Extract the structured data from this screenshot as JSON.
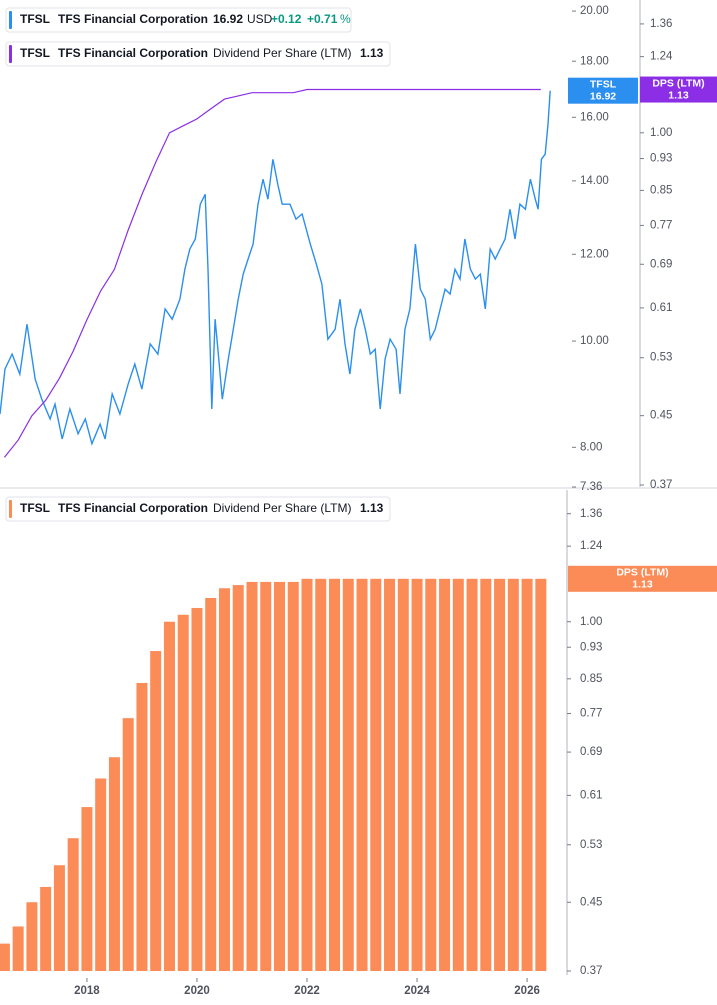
{
  "chart_data": [
    {
      "type": "line",
      "ticker": "TFSL",
      "company": "TFS Financial Corporation",
      "currency": "USD",
      "change": "+0.12",
      "change_pct": "+0.71",
      "change_pct_unit": "%",
      "xlim": [
        2016.42,
        2026.78
      ],
      "log_y": true,
      "ylim": [
        7.36,
        20.47
      ],
      "yticks": [
        {
          "value": 20,
          "label": "20.00"
        },
        {
          "value": 18,
          "label": "18.00"
        },
        {
          "value": 16,
          "label": "16.00"
        },
        {
          "value": 14,
          "label": "14.00"
        },
        {
          "value": 12,
          "label": "12.00"
        },
        {
          "value": 10,
          "label": "10.00"
        },
        {
          "value": 8,
          "label": "8.00"
        },
        7.36
      ],
      "y2lim": [
        0.37,
        1.455
      ],
      "y2ticks": [
        1.36,
        1.24,
        {
          "value": 1,
          "label": "1.00"
        },
        0.93,
        0.85,
        0.77,
        0.69,
        0.61,
        0.53,
        0.45,
        0.37
      ],
      "series": [
        {
          "name": "TFSL",
          "color": "#2b8ff0",
          "x": [
            2016.42,
            2016.51,
            2016.64,
            2016.78,
            2016.91,
            2017.06,
            2017.18,
            2017.33,
            2017.42,
            2017.55,
            2017.69,
            2017.84,
            2017.97,
            2018.09,
            2018.24,
            2018.33,
            2018.46,
            2018.6,
            2018.75,
            2018.87,
            2019.0,
            2019.15,
            2019.29,
            2019.42,
            2019.55,
            2019.69,
            2019.78,
            2019.87,
            2019.97,
            2020.06,
            2020.15,
            2020.2,
            2020.27,
            2020.33,
            2020.38,
            2020.46,
            2020.57,
            2020.66,
            2020.75,
            2020.84,
            2020.93,
            2021.02,
            2021.11,
            2021.2,
            2021.29,
            2021.38,
            2021.47,
            2021.55,
            2021.69,
            2021.8,
            2021.91,
            2022.06,
            2022.17,
            2022.27,
            2022.38,
            2022.51,
            2022.6,
            2022.69,
            2022.78,
            2022.87,
            2022.97,
            2023.06,
            2023.15,
            2023.24,
            2023.33,
            2023.42,
            2023.51,
            2023.62,
            2023.69,
            2023.78,
            2023.87,
            2023.97,
            2024.06,
            2024.15,
            2024.24,
            2024.33,
            2024.42,
            2024.51,
            2024.6,
            2024.69,
            2024.78,
            2024.87,
            2024.97,
            2025.06,
            2025.15,
            2025.24,
            2025.33,
            2025.42,
            2025.51,
            2025.6,
            2025.69,
            2025.78,
            2025.87,
            2025.97,
            2026.06,
            2026.15,
            2026.2,
            2026.26,
            2026.33,
            2026.38,
            2026.42
          ],
          "values": [
            8.58,
            9.43,
            9.73,
            9.33,
            10.36,
            9.23,
            8.85,
            8.49,
            8.76,
            8.14,
            8.67,
            8.23,
            8.49,
            8.06,
            8.4,
            8.14,
            8.95,
            8.58,
            9.14,
            9.53,
            9.04,
            9.94,
            9.73,
            10.7,
            10.47,
            10.92,
            11.63,
            12.13,
            12.39,
            13.33,
            13.61,
            11.63,
            8.67,
            10.47,
            9.83,
            8.85,
            9.63,
            10.25,
            10.92,
            11.51,
            11.88,
            12.26,
            13.33,
            14.05,
            13.47,
            14.65,
            13.9,
            13.33,
            13.33,
            12.92,
            13.06,
            12.26,
            11.75,
            11.27,
            10.04,
            10.25,
            10.92,
            9.94,
            9.33,
            10.25,
            10.7,
            10.25,
            9.73,
            9.83,
            8.67,
            9.63,
            10.04,
            9.83,
            8.95,
            10.25,
            10.7,
            12.26,
            11.15,
            10.92,
            10.04,
            10.25,
            10.7,
            11.15,
            11.04,
            11.63,
            11.39,
            12.39,
            11.63,
            11.39,
            11.51,
            10.7,
            12.13,
            11.88,
            12.13,
            12.39,
            13.19,
            12.39,
            13.33,
            13.19,
            14.05,
            13.47,
            13.19,
            14.65,
            14.81,
            15.77,
            16.92
          ]
        },
        {
          "name": "Dividend Per Share (LTM)",
          "short_name": "DPS (LTM)",
          "color": "#8b2ee6",
          "axis": "y2",
          "x": [
            2016.5,
            2016.75,
            2017,
            2017.25,
            2017.5,
            2017.75,
            2018,
            2018.25,
            2018.5,
            2018.75,
            2019,
            2019.25,
            2019.5,
            2019.75,
            2020,
            2020.25,
            2020.5,
            2020.75,
            2021,
            2021.25,
            2021.5,
            2021.75,
            2022,
            2022.25,
            2022.5,
            2022.75,
            2023,
            2023.25,
            2023.5,
            2023.75,
            2024,
            2024.25,
            2024.5,
            2024.75,
            2025,
            2025.25,
            2025.5,
            2025.75,
            2026,
            2026.25
          ],
          "values": [
            0.4,
            0.42,
            0.45,
            0.47,
            0.5,
            0.54,
            0.59,
            0.64,
            0.68,
            0.76,
            0.84,
            0.92,
            1.0,
            1.02,
            1.04,
            1.07,
            1.1,
            1.11,
            1.12,
            1.12,
            1.12,
            1.12,
            1.13,
            1.13,
            1.13,
            1.13,
            1.13,
            1.13,
            1.13,
            1.13,
            1.13,
            1.13,
            1.13,
            1.13,
            1.13,
            1.13,
            1.13,
            1.13,
            1.13,
            1.13
          ]
        }
      ]
    },
    {
      "type": "bar",
      "ticker": "TFSL",
      "company": "TFS Financial Corporation",
      "xlim": [
        2016.42,
        2026.78
      ],
      "xticks": [
        2018,
        2020,
        2022,
        2024,
        2026
      ],
      "log_y": true,
      "ylim": [
        0.37,
        1.455
      ],
      "yticks": [
        1.36,
        1.24,
        {
          "value": 1,
          "label": "1.00"
        },
        0.93,
        0.85,
        0.77,
        0.69,
        0.61,
        0.53,
        0.45,
        0.37
      ],
      "series": [
        {
          "name": "Dividend Per Share (LTM)",
          "short_name": "DPS (LTM)",
          "color": "#fb8c57",
          "x": [
            2016.5,
            2016.75,
            2017,
            2017.25,
            2017.5,
            2017.75,
            2018,
            2018.25,
            2018.5,
            2018.75,
            2019,
            2019.25,
            2019.5,
            2019.75,
            2020,
            2020.25,
            2020.5,
            2020.75,
            2021,
            2021.25,
            2021.5,
            2021.75,
            2022,
            2022.25,
            2022.5,
            2022.75,
            2023,
            2023.25,
            2023.5,
            2023.75,
            2024,
            2024.25,
            2024.5,
            2024.75,
            2025,
            2025.25,
            2025.5,
            2025.75,
            2026,
            2026.25
          ],
          "values": [
            0.4,
            0.42,
            0.45,
            0.47,
            0.5,
            0.54,
            0.59,
            0.64,
            0.68,
            0.76,
            0.84,
            0.92,
            1.0,
            1.02,
            1.04,
            1.07,
            1.1,
            1.11,
            1.12,
            1.12,
            1.12,
            1.12,
            1.13,
            1.13,
            1.13,
            1.13,
            1.13,
            1.13,
            1.13,
            1.13,
            1.13,
            1.13,
            1.13,
            1.13,
            1.13,
            1.13,
            1.13,
            1.13,
            1.13,
            1.13
          ]
        }
      ]
    }
  ]
}
